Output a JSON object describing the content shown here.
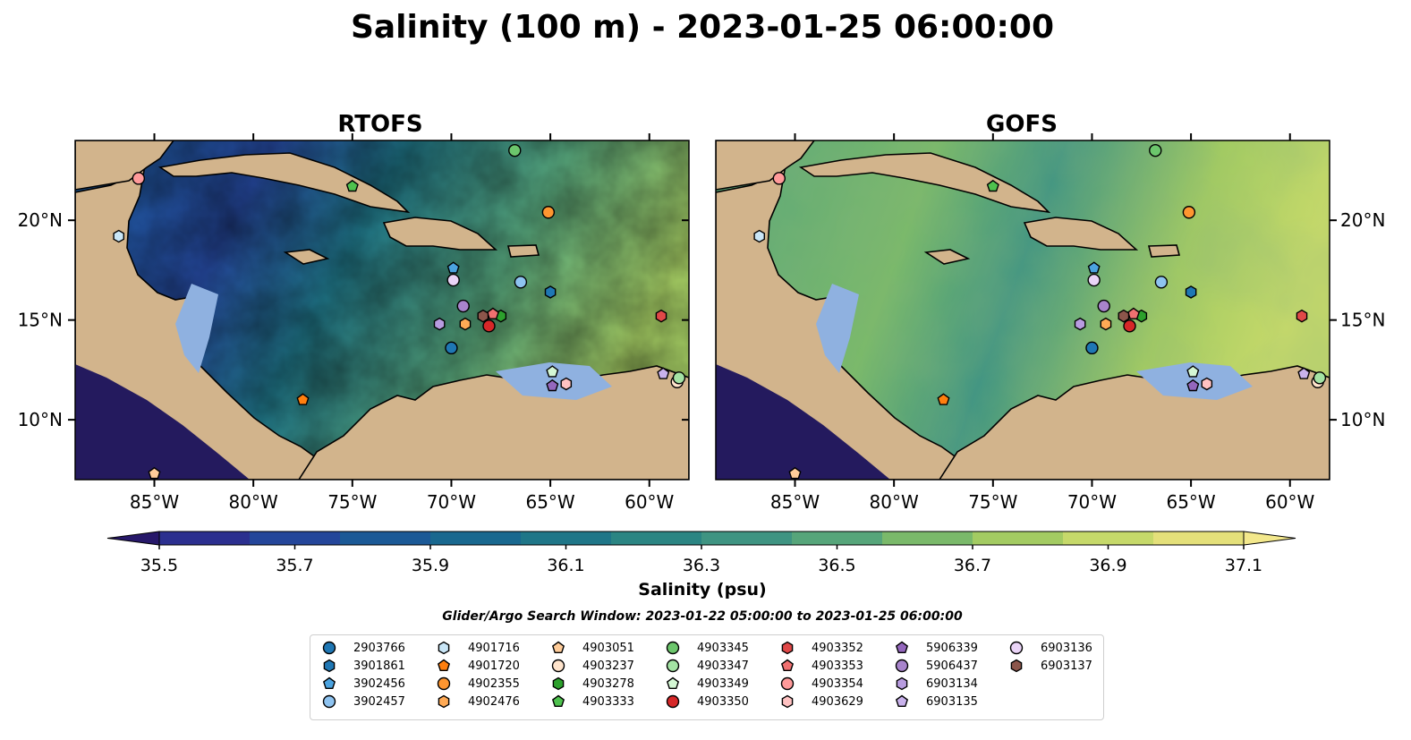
{
  "title": "Salinity (100 m) - 2023-01-25 06:00:00",
  "panels": [
    {
      "title": "RTOFS"
    },
    {
      "title": "GOFS"
    }
  ],
  "axes": {
    "x_ticks": [
      "85°W",
      "80°W",
      "75°W",
      "70°W",
      "65°W",
      "60°W"
    ],
    "y_ticks": [
      "20°N",
      "15°N",
      "10°N"
    ],
    "lon_range": [
      -89,
      -58
    ],
    "lat_range": [
      7,
      24
    ]
  },
  "colorbar": {
    "label": "Salinity (psu)",
    "ticks": [
      "35.5",
      "35.7",
      "35.9",
      "36.1",
      "36.3",
      "36.5",
      "36.7",
      "36.9",
      "37.1"
    ],
    "range": [
      35.5,
      37.1
    ],
    "extend": "both",
    "colors": [
      "#27186a",
      "#2b2f8f",
      "#24469a",
      "#1b5996",
      "#19688f",
      "#1f7688",
      "#2b8583",
      "#3f9482",
      "#56a57a",
      "#7ab96a",
      "#a3cb62",
      "#c6d96a",
      "#e4e07a",
      "#f3e88c"
    ]
  },
  "search_window": "Glider/Argo Search Window: 2023-01-22 05:00:00 to 2023-01-25 06:00:00",
  "map_colors": {
    "land": "#d2b48c",
    "shelf": "#8fb1e0",
    "pacific": "#241a5e"
  },
  "floats": [
    {
      "id": "2903766",
      "marker": "circle",
      "color": "#1f77b4",
      "lon": -70.0,
      "lat": 13.6
    },
    {
      "id": "3901861",
      "marker": "hexagon",
      "color": "#1f77b4",
      "lon": -65.0,
      "lat": 16.4
    },
    {
      "id": "3902456",
      "marker": "pentagon",
      "color": "#4ba3e0",
      "lon": -69.9,
      "lat": 17.6
    },
    {
      "id": "3902457",
      "marker": "circle",
      "color": "#8ec3f0",
      "lon": -66.5,
      "lat": 16.9
    },
    {
      "id": "4901716",
      "marker": "hexagon",
      "color": "#c9e6f7",
      "lon": -86.8,
      "lat": 19.2
    },
    {
      "id": "4901720",
      "marker": "pentagon",
      "color": "#ff7f0e",
      "lon": -77.5,
      "lat": 11.0
    },
    {
      "id": "4902355",
      "marker": "circle",
      "color": "#ff9630",
      "lon": -65.1,
      "lat": 20.4
    },
    {
      "id": "4902476",
      "marker": "hexagon",
      "color": "#ffaa55",
      "lon": -69.3,
      "lat": 14.8
    },
    {
      "id": "4903051",
      "marker": "pentagon",
      "color": "#ffcc99",
      "lon": -85.0,
      "lat": 7.3
    },
    {
      "id": "4903237",
      "marker": "circle",
      "color": "#ffe4cc",
      "lon": -58.6,
      "lat": 11.9
    },
    {
      "id": "4903278",
      "marker": "hexagon",
      "color": "#2ca02c",
      "lon": -67.5,
      "lat": 15.2
    },
    {
      "id": "4903333",
      "marker": "pentagon",
      "color": "#4ec24e",
      "lon": -75.0,
      "lat": 21.7
    },
    {
      "id": "4903345",
      "marker": "circle",
      "color": "#6cc66c",
      "lon": -66.8,
      "lat": 23.5
    },
    {
      "id": "4903347",
      "marker": "circle",
      "color": "#a4e3a4",
      "lon": -58.5,
      "lat": 12.1
    },
    {
      "id": "4903349",
      "marker": "pentagon",
      "color": "#d4f7d4",
      "lon": -64.9,
      "lat": 12.4
    },
    {
      "id": "4903350",
      "marker": "circle",
      "color": "#d62728",
      "lon": -68.1,
      "lat": 14.7
    },
    {
      "id": "4903352",
      "marker": "hexagon",
      "color": "#e04848",
      "lon": -59.4,
      "lat": 15.2
    },
    {
      "id": "4903353",
      "marker": "pentagon",
      "color": "#f07070",
      "lon": -67.9,
      "lat": 15.3
    },
    {
      "id": "4903354",
      "marker": "circle",
      "color": "#ff9a9a",
      "lon": -85.8,
      "lat": 22.1
    },
    {
      "id": "4903629",
      "marker": "hexagon",
      "color": "#ffc2c2",
      "lon": -64.2,
      "lat": 11.8
    },
    {
      "id": "5906339",
      "marker": "pentagon",
      "color": "#9467bd",
      "lon": -64.9,
      "lat": 11.7
    },
    {
      "id": "5906437",
      "marker": "circle",
      "color": "#a884cc",
      "lon": -69.4,
      "lat": 15.7
    },
    {
      "id": "6903134",
      "marker": "hexagon",
      "color": "#b89ce0",
      "lon": -70.6,
      "lat": 14.8
    },
    {
      "id": "6903135",
      "marker": "pentagon",
      "color": "#c9b2ec",
      "lon": -59.3,
      "lat": 12.3
    },
    {
      "id": "6903136",
      "marker": "circle",
      "color": "#ead4f7",
      "lon": -69.9,
      "lat": 17.0
    },
    {
      "id": "6903137",
      "marker": "hexagon",
      "color": "#8c564b",
      "lon": -68.4,
      "lat": 15.2
    }
  ]
}
